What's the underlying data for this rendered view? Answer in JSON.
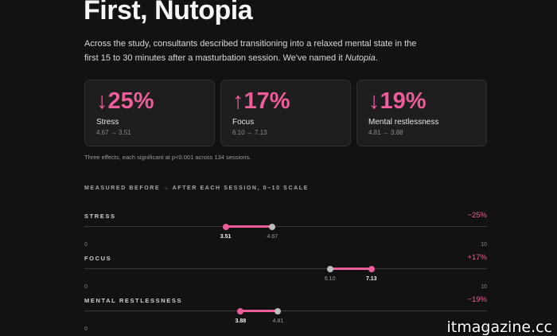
{
  "title": "First, Nutopia",
  "intro": {
    "text": "Across the study, consultants described transitioning into a relaxed mental state in the first 15 to 30 minutes after a masturbation session. We've named it ",
    "emph": "Nutopia",
    "end": "."
  },
  "cards": [
    {
      "arrow": "↓",
      "pct": "25%",
      "label": "Stress",
      "range": "4.67 → 3.51"
    },
    {
      "arrow": "↑",
      "pct": "17%",
      "label": "Focus",
      "range": "6.10 → 7.13"
    },
    {
      "arrow": "↓",
      "pct": "19%",
      "label": "Mental restlessness",
      "range": "4.81 → 3.88"
    }
  ],
  "note": "Three effects, each significant at p<0.001 across 134 sessions.",
  "section_label": "MEASURED BEFORE → AFTER EACH SESSION, 0–10 SCALE",
  "scale": {
    "min": 0,
    "max": 10,
    "min_label": "0",
    "max_label": "10"
  },
  "metrics": [
    {
      "name": "STRESS",
      "change": "−25%",
      "before": 4.67,
      "after": 3.51,
      "before_label": "4.67",
      "after_label": "3.51"
    },
    {
      "name": "FOCUS",
      "change": "+17%",
      "before": 6.1,
      "after": 7.13,
      "before_label": "6.10",
      "after_label": "7.13"
    },
    {
      "name": "MENTAL RESTLESSNESS",
      "change": "−19%",
      "before": 4.81,
      "after": 3.88,
      "before_label": "4.81",
      "after_label": "3.88"
    }
  ],
  "colors": {
    "accent": "#ee5d9b",
    "before_dot": "#bdbdbd",
    "background": "#121212"
  },
  "watermark": "itmagazine.cc"
}
